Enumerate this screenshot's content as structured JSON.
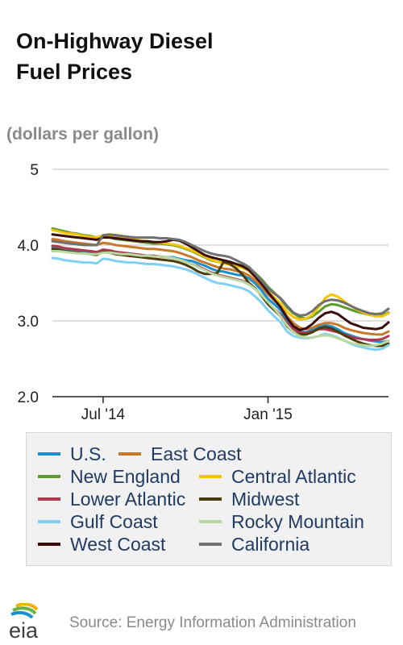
{
  "title_line1": "On-Highway Diesel",
  "title_line2": "Fuel Prices",
  "units": "(dollars per gallon)",
  "source": "Source: Energy Information Administration",
  "logo_text": "eia",
  "chart_data": {
    "type": "line",
    "title": "On-Highway Diesel Fuel Prices",
    "ylabel": "(dollars per gallon)",
    "ylim": [
      2.0,
      5.0
    ],
    "yticks": [
      {
        "value": 5,
        "label": "5"
      },
      {
        "value": 4,
        "label": "4.0"
      },
      {
        "value": 3,
        "label": "3.0"
      },
      {
        "value": 2,
        "label": "2.0"
      }
    ],
    "xticks": [
      {
        "week": 8,
        "label": "Jul '14"
      },
      {
        "week": 34,
        "label": "Jan '15"
      }
    ],
    "x": [
      0,
      1,
      2,
      3,
      4,
      5,
      6,
      7,
      8,
      9,
      10,
      11,
      12,
      13,
      14,
      15,
      16,
      17,
      18,
      19,
      20,
      21,
      22,
      23,
      24,
      25,
      26,
      27,
      28,
      29,
      30,
      31,
      32,
      33,
      34,
      35,
      36,
      37,
      38,
      39,
      40,
      41,
      42,
      43,
      44,
      45,
      46,
      47,
      48,
      49,
      50,
      51,
      52,
      53
    ],
    "grid": true,
    "legend_position": "bottom",
    "series": [
      {
        "name": "U.S.",
        "color": "#1a8fd0",
        "values": [
          3.98,
          3.97,
          3.95,
          3.94,
          3.93,
          3.92,
          3.91,
          3.9,
          3.94,
          3.93,
          3.91,
          3.9,
          3.89,
          3.88,
          3.87,
          3.86,
          3.86,
          3.85,
          3.84,
          3.84,
          3.82,
          3.8,
          3.79,
          3.76,
          3.73,
          3.69,
          3.66,
          3.65,
          3.63,
          3.61,
          3.6,
          3.56,
          3.49,
          3.4,
          3.29,
          3.22,
          3.14,
          3.0,
          2.92,
          2.86,
          2.85,
          2.88,
          2.92,
          2.94,
          2.93,
          2.89,
          2.84,
          2.81,
          2.78,
          2.76,
          2.74,
          2.73,
          2.72,
          2.74
        ]
      },
      {
        "name": "East Coast",
        "color": "#c8782a",
        "values": [
          4.08,
          4.07,
          4.05,
          4.04,
          4.03,
          4.02,
          4.01,
          4.0,
          4.03,
          4.02,
          4.0,
          3.99,
          3.98,
          3.97,
          3.96,
          3.95,
          3.95,
          3.94,
          3.93,
          3.92,
          3.9,
          3.87,
          3.84,
          3.8,
          3.77,
          3.74,
          3.71,
          3.69,
          3.68,
          3.66,
          3.64,
          3.6,
          3.53,
          3.45,
          3.35,
          3.27,
          3.19,
          3.06,
          2.97,
          2.91,
          2.89,
          2.91,
          2.95,
          2.97,
          2.97,
          2.95,
          2.91,
          2.88,
          2.86,
          2.84,
          2.83,
          2.82,
          2.82,
          2.86
        ]
      },
      {
        "name": "New England",
        "color": "#5a9a2e",
        "values": [
          4.22,
          4.2,
          4.18,
          4.16,
          4.15,
          4.13,
          4.12,
          4.1,
          4.11,
          4.1,
          4.08,
          4.07,
          4.06,
          4.05,
          4.04,
          4.03,
          4.02,
          4.02,
          4.01,
          4.0,
          3.98,
          3.95,
          3.92,
          3.88,
          3.84,
          3.8,
          3.78,
          3.77,
          3.76,
          3.75,
          3.73,
          3.7,
          3.63,
          3.55,
          3.45,
          3.37,
          3.29,
          3.18,
          3.1,
          3.05,
          3.03,
          3.06,
          3.12,
          3.19,
          3.22,
          3.21,
          3.18,
          3.15,
          3.12,
          3.1,
          3.08,
          3.07,
          3.07,
          3.11
        ]
      },
      {
        "name": "Central Atlantic",
        "color": "#f5c400",
        "values": [
          4.2,
          4.18,
          4.16,
          4.15,
          4.14,
          4.12,
          4.11,
          4.1,
          4.13,
          4.12,
          4.1,
          4.09,
          4.08,
          4.07,
          4.06,
          4.05,
          4.04,
          4.03,
          4.02,
          4.01,
          3.99,
          3.96,
          3.93,
          3.89,
          3.85,
          3.81,
          3.78,
          3.76,
          3.74,
          3.72,
          3.7,
          3.66,
          3.58,
          3.49,
          3.39,
          3.31,
          3.23,
          3.12,
          3.05,
          3.02,
          3.03,
          3.08,
          3.18,
          3.3,
          3.35,
          3.32,
          3.26,
          3.2,
          3.15,
          3.11,
          3.08,
          3.06,
          3.06,
          3.1
        ]
      },
      {
        "name": "Lower Atlantic",
        "color": "#b0384e",
        "values": [
          3.99,
          3.98,
          3.96,
          3.95,
          3.94,
          3.93,
          3.92,
          3.91,
          3.94,
          3.93,
          3.91,
          3.9,
          3.89,
          3.88,
          3.87,
          3.86,
          3.86,
          3.85,
          3.84,
          3.83,
          3.81,
          3.78,
          3.75,
          3.72,
          3.68,
          3.64,
          3.61,
          3.59,
          3.57,
          3.55,
          3.53,
          3.49,
          3.42,
          3.34,
          3.24,
          3.16,
          3.08,
          2.97,
          2.89,
          2.85,
          2.84,
          2.86,
          2.89,
          2.89,
          2.87,
          2.85,
          2.82,
          2.79,
          2.77,
          2.76,
          2.75,
          2.75,
          2.76,
          2.8
        ]
      },
      {
        "name": "Midwest",
        "color": "#4a3d0a",
        "values": [
          3.95,
          3.94,
          3.92,
          3.91,
          3.9,
          3.89,
          3.88,
          3.87,
          3.91,
          3.9,
          3.88,
          3.87,
          3.86,
          3.85,
          3.84,
          3.83,
          3.82,
          3.81,
          3.8,
          3.79,
          3.77,
          3.74,
          3.7,
          3.65,
          3.62,
          3.62,
          3.63,
          3.78,
          3.75,
          3.69,
          3.61,
          3.5,
          3.43,
          3.33,
          3.22,
          3.14,
          3.06,
          2.93,
          2.85,
          2.82,
          2.82,
          2.85,
          2.9,
          2.92,
          2.9,
          2.86,
          2.81,
          2.77,
          2.73,
          2.7,
          2.68,
          2.67,
          2.67,
          2.7
        ]
      },
      {
        "name": "Gulf Coast",
        "color": "#7fd0f2",
        "values": [
          3.83,
          3.82,
          3.8,
          3.79,
          3.78,
          3.77,
          3.77,
          3.76,
          3.82,
          3.81,
          3.79,
          3.78,
          3.77,
          3.77,
          3.76,
          3.75,
          3.75,
          3.74,
          3.73,
          3.72,
          3.7,
          3.68,
          3.65,
          3.61,
          3.57,
          3.53,
          3.5,
          3.49,
          3.47,
          3.45,
          3.43,
          3.39,
          3.32,
          3.24,
          3.14,
          3.06,
          2.98,
          2.86,
          2.8,
          2.78,
          2.77,
          2.78,
          2.8,
          2.83,
          2.81,
          2.78,
          2.74,
          2.7,
          2.67,
          2.65,
          2.63,
          2.62,
          2.63,
          2.68
        ]
      },
      {
        "name": "Rocky Mountain",
        "color": "#b9d8a0",
        "values": [
          3.92,
          3.92,
          3.91,
          3.9,
          3.89,
          3.89,
          3.88,
          3.88,
          3.9,
          3.9,
          3.89,
          3.88,
          3.88,
          3.87,
          3.86,
          3.86,
          3.85,
          3.85,
          3.84,
          3.83,
          3.81,
          3.78,
          3.75,
          3.71,
          3.67,
          3.63,
          3.6,
          3.58,
          3.56,
          3.54,
          3.52,
          3.48,
          3.42,
          3.34,
          3.25,
          3.16,
          3.06,
          2.94,
          2.85,
          2.8,
          2.78,
          2.78,
          2.8,
          2.81,
          2.8,
          2.77,
          2.74,
          2.71,
          2.69,
          2.68,
          2.67,
          2.68,
          2.7,
          2.74
        ]
      },
      {
        "name": "West Coast",
        "color": "#3a0d0d",
        "values": [
          4.14,
          4.13,
          4.12,
          4.11,
          4.1,
          4.09,
          4.08,
          4.07,
          4.1,
          4.1,
          4.09,
          4.08,
          4.07,
          4.06,
          4.05,
          4.05,
          4.04,
          4.04,
          4.05,
          4.07,
          4.06,
          4.02,
          3.97,
          3.92,
          3.87,
          3.84,
          3.82,
          3.8,
          3.78,
          3.75,
          3.72,
          3.67,
          3.58,
          3.49,
          3.38,
          3.28,
          3.18,
          3.04,
          2.93,
          2.88,
          2.9,
          2.96,
          3.04,
          3.1,
          3.12,
          3.09,
          3.03,
          2.97,
          2.94,
          2.91,
          2.9,
          2.89,
          2.91,
          2.98
        ]
      },
      {
        "name": "California",
        "color": "#707070",
        "values": [
          4.05,
          4.04,
          4.03,
          4.02,
          4.01,
          4.0,
          4.0,
          4.0,
          4.13,
          4.14,
          4.13,
          4.12,
          4.11,
          4.1,
          4.1,
          4.1,
          4.1,
          4.09,
          4.09,
          4.08,
          4.07,
          4.04,
          4.0,
          3.96,
          3.92,
          3.89,
          3.87,
          3.86,
          3.84,
          3.8,
          3.76,
          3.71,
          3.62,
          3.53,
          3.43,
          3.36,
          3.3,
          3.2,
          3.11,
          3.07,
          3.08,
          3.13,
          3.21,
          3.26,
          3.28,
          3.27,
          3.24,
          3.2,
          3.16,
          3.13,
          3.1,
          3.09,
          3.1,
          3.16
        ]
      }
    ]
  },
  "legend": [
    {
      "label": "U.S.",
      "color": "#1a8fd0"
    },
    {
      "label": "East Coast",
      "color": "#c8782a"
    },
    {
      "label": "New England",
      "color": "#5a9a2e"
    },
    {
      "label": "Central Atlantic",
      "color": "#f5c400"
    },
    {
      "label": "Lower Atlantic",
      "color": "#b0384e"
    },
    {
      "label": "Midwest",
      "color": "#4a3d0a"
    },
    {
      "label": "Gulf Coast",
      "color": "#7fd0f2"
    },
    {
      "label": "Rocky Mountain",
      "color": "#b9d8a0"
    },
    {
      "label": "West Coast",
      "color": "#3a0d0d"
    },
    {
      "label": "California",
      "color": "#707070"
    }
  ]
}
